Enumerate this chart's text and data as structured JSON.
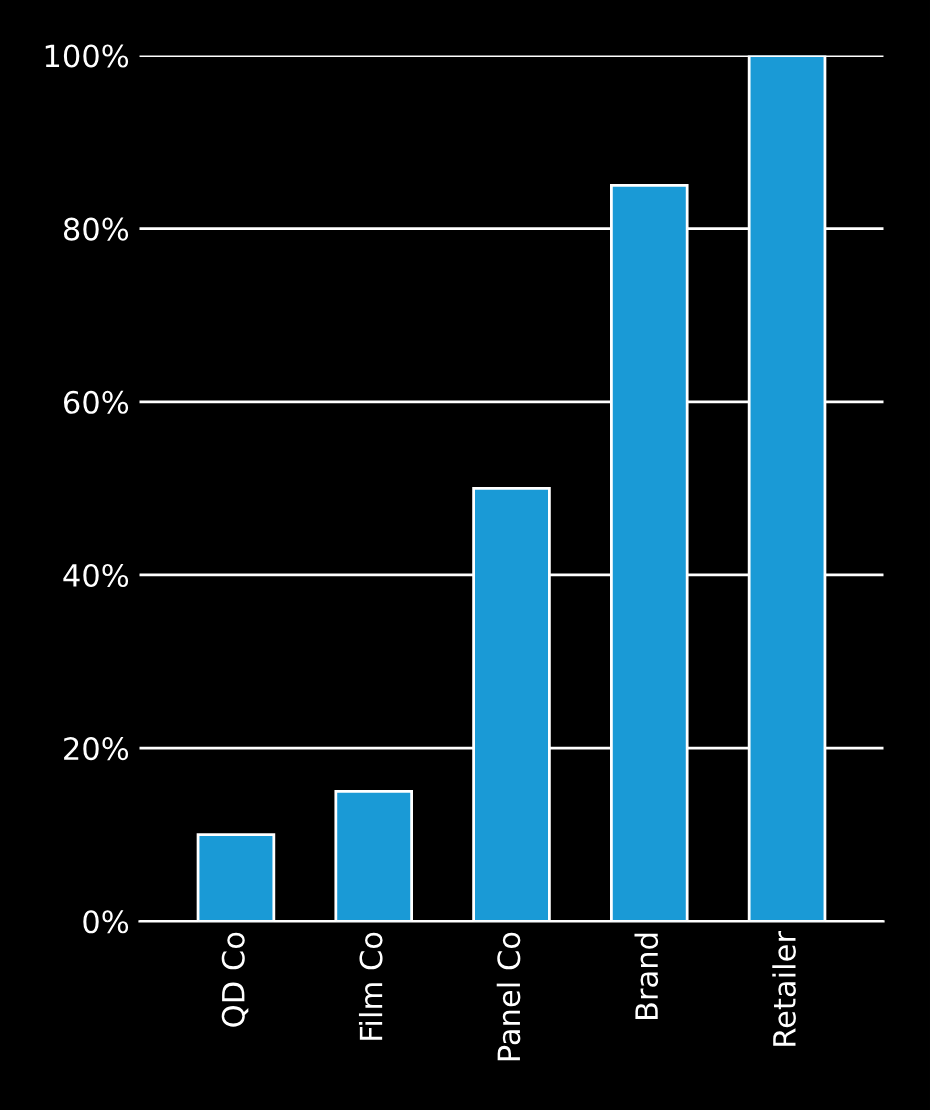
{
  "chart_data": {
    "type": "bar",
    "categories": [
      "QD Co",
      "Film Co",
      "Panel Co",
      "Brand",
      "Retailer"
    ],
    "values": [
      10,
      15,
      50,
      85,
      100
    ],
    "color": "#1a9ad6",
    "ylim": [
      0,
      100
    ],
    "yticks": [
      {
        "value": 0,
        "label": "0%"
      },
      {
        "value": 20,
        "label": "20%"
      },
      {
        "value": 40,
        "label": "40%"
      },
      {
        "value": 60,
        "label": "60%"
      },
      {
        "value": 80,
        "label": "80%"
      },
      {
        "value": 100,
        "label": "100%"
      }
    ],
    "grid": "y",
    "legend": false
  }
}
